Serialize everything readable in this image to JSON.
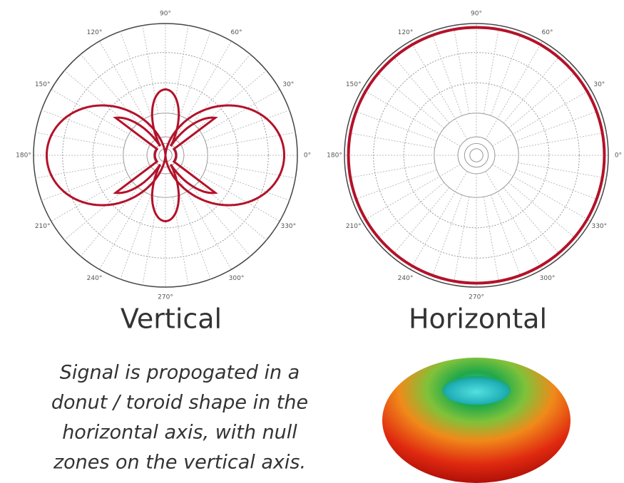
{
  "plots": [
    {
      "angle_labels": [
        "0°",
        "30°",
        "60°",
        "90°",
        "120°",
        "150°",
        "180°",
        "210°",
        "240°",
        "270°",
        "300°",
        "330°"
      ],
      "caption": "Vertical"
    },
    {
      "angle_labels": [
        "0°",
        "30°",
        "60°",
        "90°",
        "120°",
        "150°",
        "180°",
        "210°",
        "240°",
        "270°",
        "300°",
        "330°"
      ],
      "caption": "Horizontal"
    }
  ],
  "description": [
    "Signal is propogated in a",
    "donut / toroid shape in the",
    "horizontal axis, with null",
    "zones on the vertical axis."
  ]
}
